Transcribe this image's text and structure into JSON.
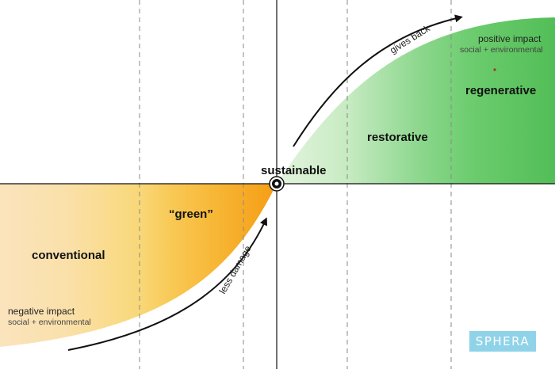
{
  "zones": {
    "conventional": "conventional",
    "green": "“green”",
    "sustainable": "sustainable",
    "restorative": "restorative",
    "regenerative": "regenerative"
  },
  "impact": {
    "negative_title": "negative impact",
    "negative_sub": "social + environmental",
    "positive_title": "positive impact",
    "positive_sub": "social + environmental"
  },
  "arrows": {
    "lower": "less damage",
    "upper": "gives back"
  },
  "logo": "SPHERA",
  "colors": {
    "orange_light": "#fbe3b8",
    "orange_mid": "#f9c85a",
    "orange_dark": "#f5a21a",
    "green_light": "#d8efd2",
    "green_mid": "#7fd27f",
    "green_dark": "#4cbb52",
    "logo_bg": "#8fd3e8"
  }
}
